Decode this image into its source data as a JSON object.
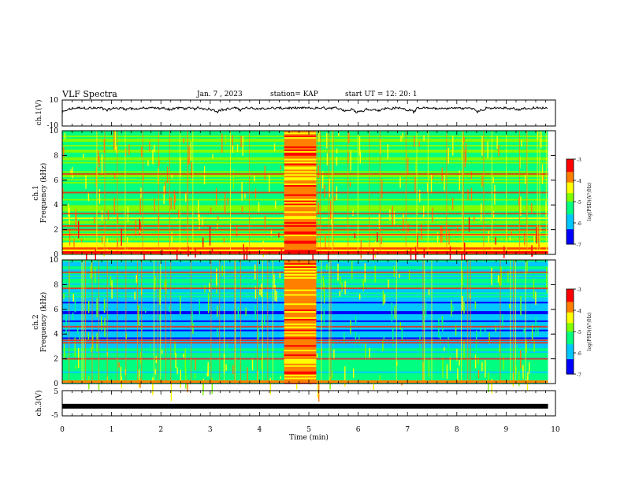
{
  "header": {
    "title": "VLF Spectra",
    "date": "Jan. 7 , 2023",
    "station": "station= KAP",
    "start": "start UT = 12: 20: 1"
  },
  "chart_data": [
    {
      "type": "line",
      "name": "ch.1 waveform",
      "ylabel": "ch.1(V)",
      "ylim": [
        -10,
        10
      ],
      "yticks": [
        "10",
        "-10"
      ],
      "xlim": [
        0,
        10
      ],
      "y_approx_range": [
        -3,
        4
      ]
    },
    {
      "type": "heatmap",
      "ylabel": "ch.1 Frequency (kHz)",
      "ylim": [
        0,
        10
      ],
      "yticks": [
        "0",
        "2",
        "4",
        "6",
        "8",
        "10"
      ],
      "xlim": [
        0,
        10
      ],
      "colorbar": {
        "label": "log(PSD)(V²/Hz)",
        "ticks": [
          "-3",
          "-4",
          "-5",
          "-6",
          "-7"
        ],
        "range": [
          -7,
          -3
        ]
      },
      "strong_bands_khz": [
        0.5,
        1.6,
        2.0,
        2.3,
        3.3,
        5.0,
        6.5
      ],
      "burst_window_min": [
        4.5,
        5.15
      ],
      "data_end_min": 9.85
    },
    {
      "type": "heatmap",
      "ylabel": "ch.2 Frequency (kHz)",
      "ylim": [
        0,
        10
      ],
      "yticks": [
        "0",
        "2",
        "4",
        "6",
        "8",
        "10"
      ],
      "xlim": [
        0,
        10
      ],
      "colorbar": {
        "label": "log(PSD)(V²/Hz)",
        "ticks": [
          "-3",
          "-4",
          "-5",
          "-6",
          "-7"
        ],
        "range": [
          -7,
          -3
        ]
      },
      "strong_bands_khz": [
        2.0,
        3.3,
        3.5,
        4.6,
        7.7,
        9.0
      ],
      "burst_window_min": [
        4.5,
        5.15
      ],
      "data_end_min": 9.85
    },
    {
      "type": "line",
      "name": "ch.3 waveform",
      "ylabel": "ch.3(V)",
      "ylim": [
        -5,
        5
      ],
      "yticks": [
        "5",
        "-5"
      ],
      "xlim": [
        0,
        10
      ],
      "y_approx_value": -1.2
    }
  ],
  "xaxis": {
    "label": "Time (min)",
    "ticks": [
      "0",
      "1",
      "2",
      "3",
      "4",
      "5",
      "6",
      "7",
      "8",
      "9",
      "10"
    ]
  },
  "colors": {
    "cmap": [
      "#00008b",
      "#0000ff",
      "#00c8ff",
      "#00ff80",
      "#80ff00",
      "#ffff00",
      "#ff8000",
      "#ff0000",
      "#ffffff"
    ]
  }
}
